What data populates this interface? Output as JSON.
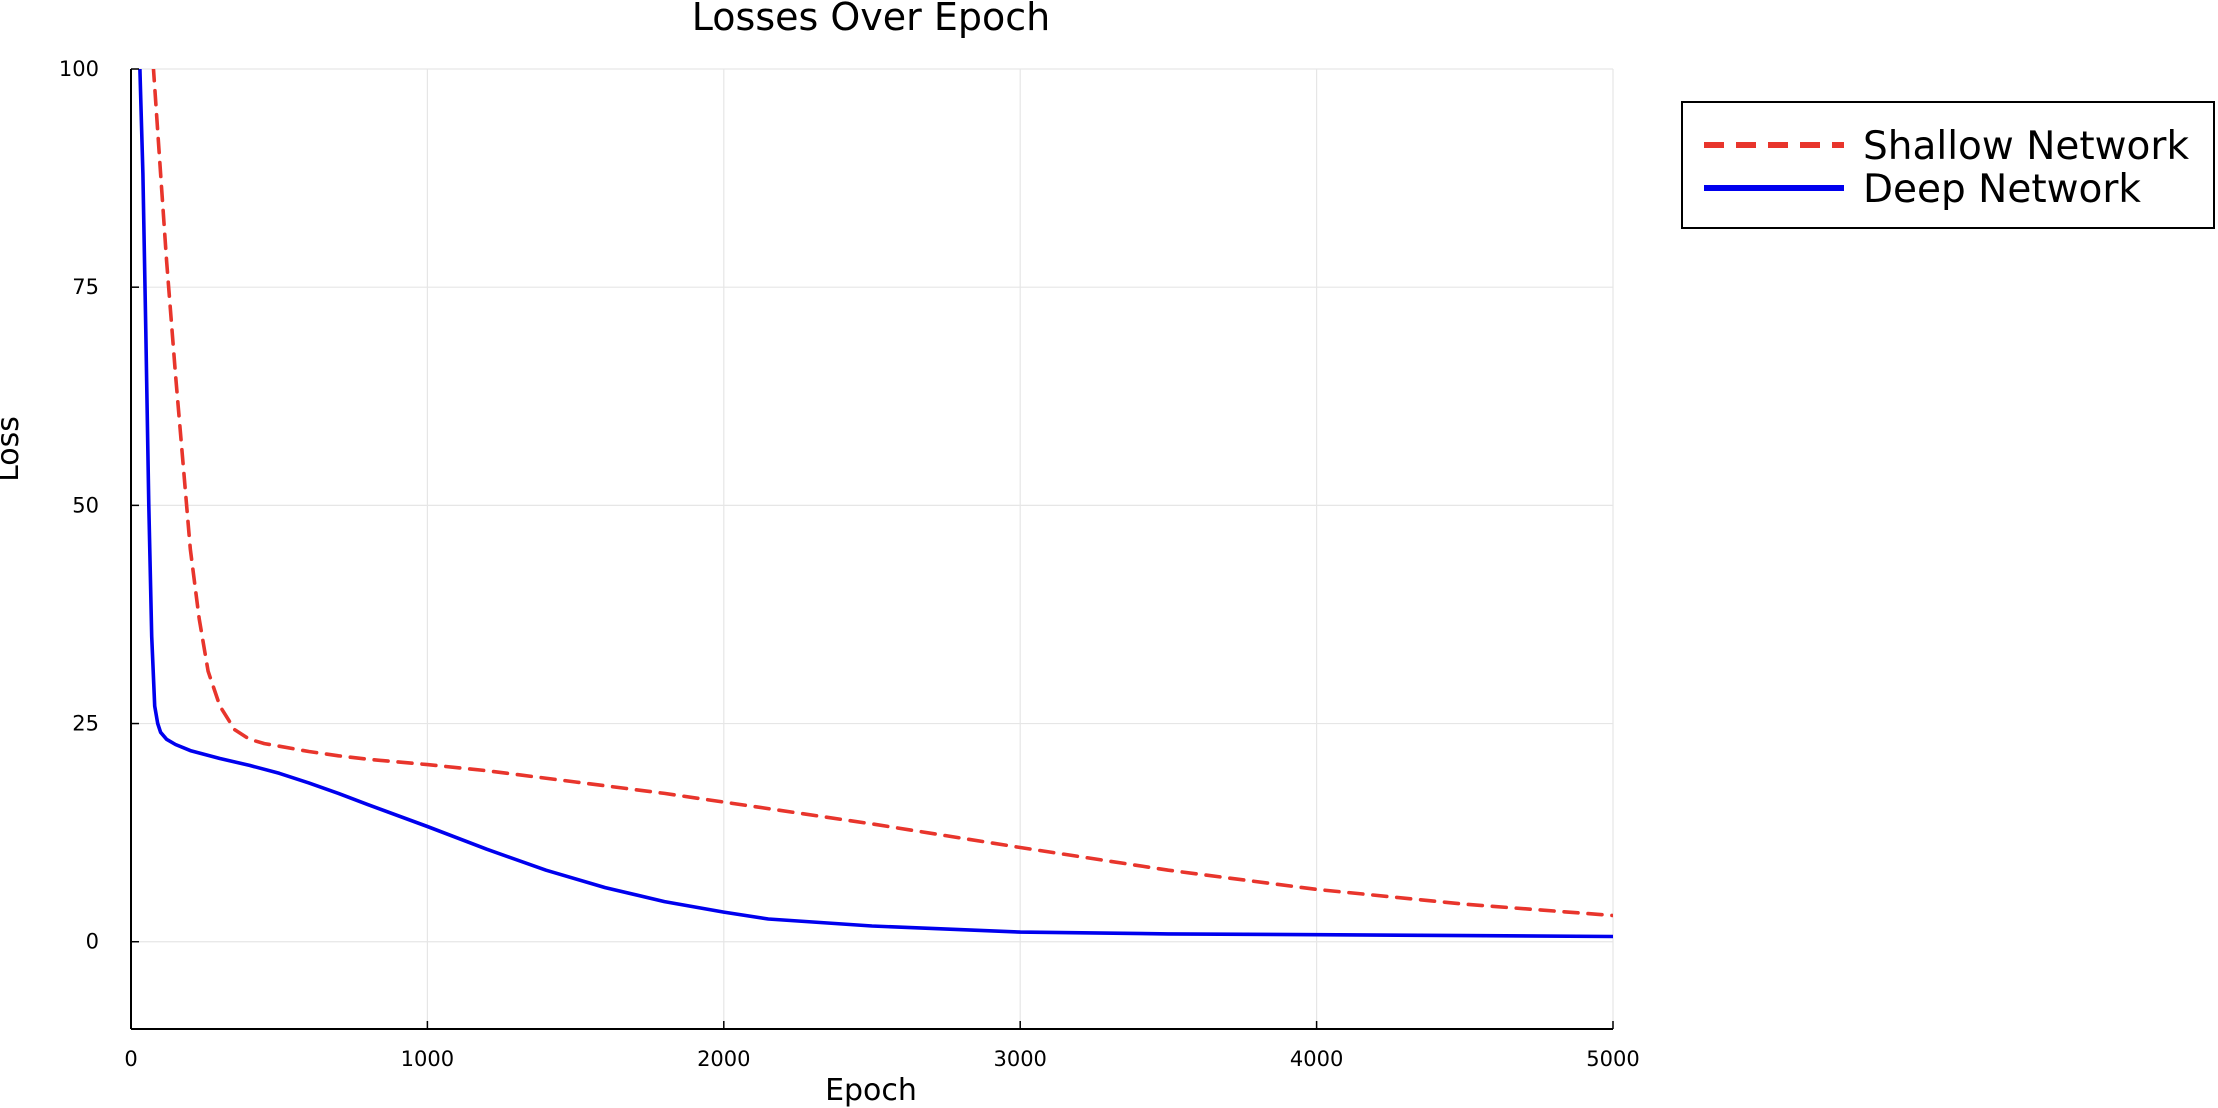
{
  "chart_data": {
    "type": "line",
    "title": "Losses Over Epoch",
    "xlabel": "Epoch",
    "ylabel": "Loss",
    "xlim": [
      0,
      5000
    ],
    "ylim": [
      -10,
      100
    ],
    "xticks": [
      0,
      1000,
      2000,
      3000,
      4000,
      5000
    ],
    "yticks": [
      0,
      25,
      50,
      75,
      100
    ],
    "xtick_labels": [
      "0",
      "1000",
      "2000",
      "3000",
      "4000",
      "5000"
    ],
    "ytick_labels": [
      "0",
      "25",
      "50",
      "75",
      "100"
    ],
    "grid": true,
    "legend_position": "outside-top-right",
    "series": [
      {
        "name": "Shallow Network",
        "color": "#e8352c",
        "line_style": "dashed",
        "x": [
          70,
          100,
          120,
          150,
          180,
          200,
          230,
          260,
          300,
          350,
          400,
          450,
          500,
          600,
          700,
          800,
          1000,
          1200,
          1500,
          1800,
          2000,
          2500,
          3000,
          3500,
          4000,
          4500,
          5000
        ],
        "y": [
          103,
          88,
          78,
          65,
          53,
          45,
          37,
          31,
          27,
          24.3,
          23.2,
          22.7,
          22.4,
          21.8,
          21.3,
          20.9,
          20.3,
          19.6,
          18.3,
          17,
          16,
          13.5,
          10.8,
          8.2,
          6,
          4.3,
          3
        ]
      },
      {
        "name": "Deep Network",
        "color": "#0000ee",
        "line_style": "solid",
        "x": [
          20,
          30,
          40,
          50,
          60,
          70,
          80,
          90,
          100,
          120,
          150,
          200,
          300,
          400,
          500,
          600,
          700,
          800,
          1000,
          1200,
          1400,
          1600,
          1800,
          2000,
          2150,
          2500,
          3000,
          3500,
          4000,
          4500,
          5000
        ],
        "y": [
          103,
          100,
          88,
          70,
          50,
          35,
          27,
          25,
          24,
          23.2,
          22.6,
          21.9,
          21,
          20.2,
          19.3,
          18.2,
          17,
          15.7,
          13.2,
          10.6,
          8.2,
          6.2,
          4.6,
          3.4,
          2.6,
          1.8,
          1.1,
          0.9,
          0.8,
          0.7,
          0.6
        ]
      }
    ]
  }
}
